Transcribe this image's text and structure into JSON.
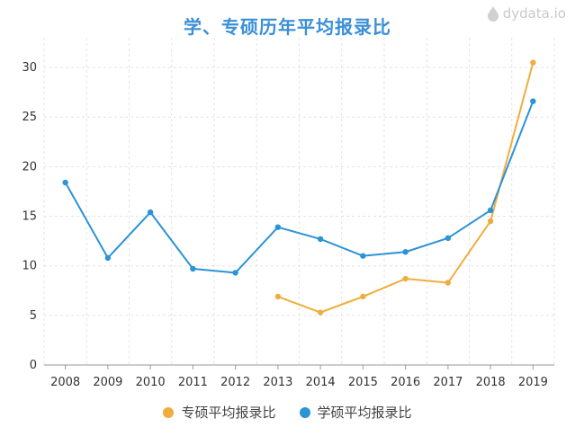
{
  "chart_data": {
    "type": "line",
    "title": "学、专硕历年平均报录比",
    "categories": [
      "2008",
      "2009",
      "2010",
      "2011",
      "2012",
      "2013",
      "2014",
      "2015",
      "2016",
      "2017",
      "2018",
      "2019"
    ],
    "ylim": [
      0,
      30
    ],
    "yticks": [
      0,
      5,
      10,
      15,
      20,
      25,
      30
    ],
    "grid": true,
    "legend_position": "bottom",
    "series": [
      {
        "name": "专硕平均报录比",
        "color": "#f0ad3e",
        "values": [
          null,
          null,
          null,
          null,
          null,
          6.9,
          5.3,
          6.9,
          8.7,
          8.3,
          14.5,
          30.5
        ]
      },
      {
        "name": "学硕平均报录比",
        "color": "#2b93d6",
        "values": [
          18.4,
          10.8,
          15.4,
          9.7,
          9.3,
          13.9,
          12.7,
          11.0,
          11.4,
          12.8,
          15.6,
          26.6
        ]
      }
    ]
  },
  "watermark": "dydata.io"
}
